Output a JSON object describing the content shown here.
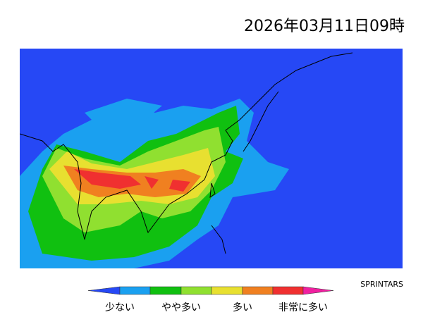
{
  "header": {
    "title": "2026年03月11日09時"
  },
  "map": {
    "credit": "SPRINTARS"
  },
  "legend": {
    "labels": [
      "少ない",
      "やや多い",
      "多い",
      "非常に多い"
    ]
  }
}
